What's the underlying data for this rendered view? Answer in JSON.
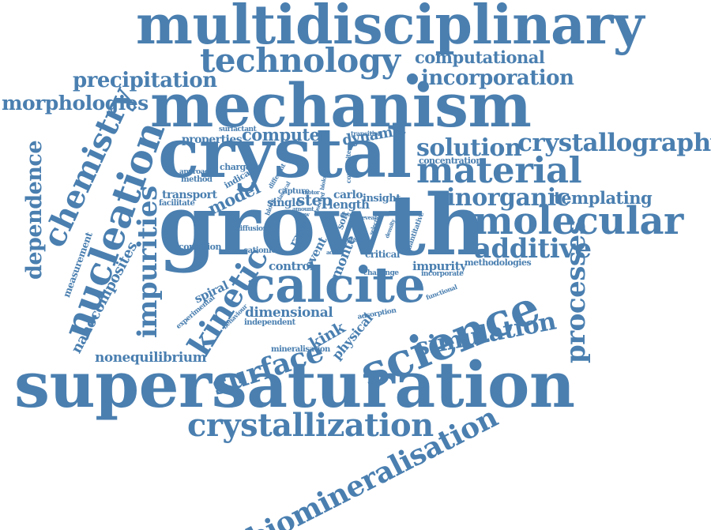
{
  "color": "#4a7fb0",
  "words": [
    "multidisciplinary",
    "technology",
    "computational",
    "precipitation",
    "incorporation",
    "morphologies",
    "mechanism",
    "chemistry",
    "dependence",
    "crystal",
    "crystallography",
    "solution",
    "material",
    "nucleation",
    "growth",
    "molecular",
    "inorganic",
    "templating",
    "additive",
    "processes",
    "impurities",
    "kinetic",
    "calcite",
    "science",
    "surface",
    "simulation",
    "supersaturation",
    "nonequilibrium",
    "crystallization",
    "biomineralisation",
    "nanocomposites",
    "measurement",
    "computer",
    "properties",
    "dynamic",
    "model",
    "transport",
    "charged",
    "indicator",
    "approach",
    "method",
    "surfactant",
    "transition",
    "concentration",
    "composite",
    "carlo",
    "step",
    "length",
    "insight",
    "single",
    "capture",
    "different",
    "facilitate",
    "diffusion",
    "cationic",
    "condition",
    "control",
    "monte",
    "critical",
    "impurity",
    "methodologies",
    "incorporate",
    "dimensional",
    "independent",
    "kink",
    "physical",
    "rare",
    "event",
    "spiral",
    "experimental",
    "behaviour",
    "mineralisation",
    "adsorption",
    "functional",
    "challenge",
    "quantitative",
    "block",
    "soft",
    "classical",
    "amount",
    "range",
    "phase",
    "reveal",
    "selection",
    "density",
    "grow",
    "motor",
    "grow",
    "biology",
    "acid",
    "observed"
  ]
}
